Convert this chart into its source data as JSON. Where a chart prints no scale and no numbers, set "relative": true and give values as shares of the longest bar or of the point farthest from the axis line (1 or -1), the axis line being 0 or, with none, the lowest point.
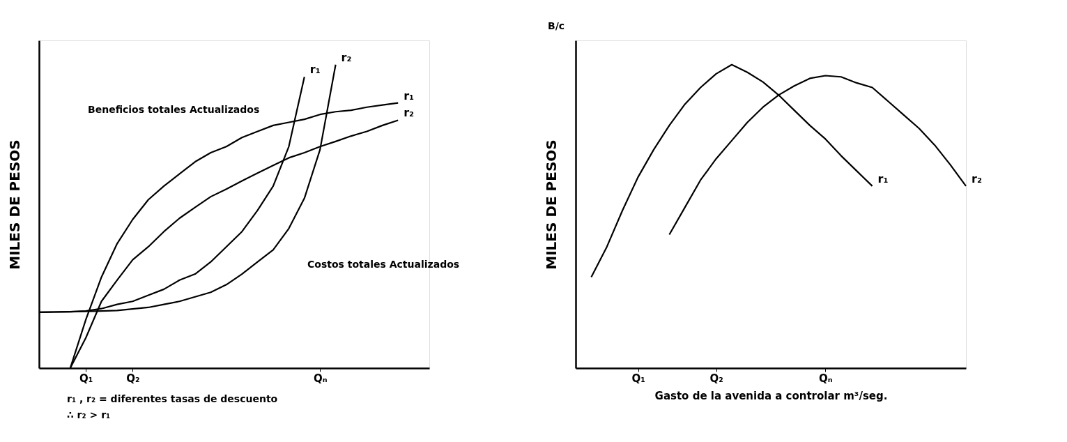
{
  "chart_data": [
    {
      "type": "line",
      "relative": true,
      "ylabel": "MILES DE PESOS",
      "marker": "none",
      "line_style": "solid",
      "categories": [
        null,
        null,
        null,
        "Q₁",
        null,
        null,
        "Q₂",
        null,
        null,
        null,
        null,
        null,
        null,
        null,
        null,
        null,
        null,
        null,
        "Qₙ",
        null,
        null,
        null,
        null,
        null,
        null,
        null
      ],
      "series": [
        {
          "name": "r₁",
          "color": "#000000",
          "values": [
            null,
            null,
            0,
            0.16,
            0.3,
            0.41,
            0.49,
            0.555,
            0.6,
            0.64,
            0.68,
            0.71,
            0.73,
            0.76,
            0.78,
            0.8,
            0.81,
            0.82,
            0.836,
            0.845,
            0.85,
            0.86,
            0.867,
            0.874,
            null,
            null
          ]
        },
        {
          "name": "r₂",
          "color": "#000000",
          "values": [
            null,
            null,
            0,
            0.1,
            0.22,
            0.29,
            0.357,
            0.4,
            0.45,
            0.494,
            0.53,
            0.565,
            0.59,
            0.617,
            0.643,
            0.668,
            0.693,
            0.71,
            0.73,
            0.747,
            0.765,
            0.78,
            0.8,
            0.817,
            null,
            null
          ]
        },
        {
          "name": "r₁",
          "color": "#000000",
          "values": [
            0.184,
            0.185,
            0.186,
            0.188,
            0.196,
            0.21,
            0.22,
            0.24,
            0.26,
            0.29,
            0.31,
            0.35,
            0.4,
            0.45,
            0.52,
            0.6,
            0.73,
            0.96,
            null,
            null,
            null,
            null,
            null,
            null,
            null,
            null
          ]
        },
        {
          "name": "r₂",
          "color": "#000000",
          "values": [
            0.184,
            0.185,
            0.186,
            0.187,
            0.188,
            0.19,
            0.195,
            0.2,
            0.21,
            0.22,
            0.235,
            0.25,
            0.275,
            0.31,
            0.35,
            0.39,
            0.46,
            0.56,
            0.72,
            1,
            null,
            null,
            null,
            null,
            null,
            null
          ]
        }
      ],
      "annotations": [
        "Beneficios totales Actualizados",
        "Costos totales Actualizados",
        "r₁ , r₂ = diferentes tasas de descuento",
        "∴ r₂ > r₁"
      ]
    },
    {
      "type": "line",
      "relative": true,
      "ylabel": "MILES DE PESOS",
      "xlabel": "Gasto de la avenida a controlar m³/seg.",
      "marker": "none",
      "line_style": "solid",
      "categories": [
        null,
        null,
        null,
        null,
        "Q₁",
        null,
        null,
        null,
        null,
        "Q₂",
        null,
        null,
        null,
        null,
        null,
        null,
        "Qₙ",
        null,
        null,
        null,
        null,
        null,
        null,
        null,
        null,
        null
      ],
      "series": [
        {
          "name": "r₁",
          "color": "#000000",
          "values": [
            null,
            0.3,
            0.4,
            0.52,
            0.63,
            0.72,
            0.8,
            0.87,
            0.925,
            0.97,
            1,
            0.975,
            0.943,
            0.9,
            0.85,
            0.8,
            0.755,
            0.7,
            0.65,
            0.6,
            null,
            null,
            null,
            null,
            null,
            null
          ]
        },
        {
          "name": "r₂",
          "color": "#000000",
          "values": [
            null,
            null,
            null,
            null,
            null,
            null,
            0.44,
            0.53,
            0.62,
            0.69,
            0.75,
            0.81,
            0.86,
            0.9,
            0.93,
            0.955,
            0.964,
            0.96,
            0.94,
            0.925,
            0.88,
            0.835,
            0.79,
            0.735,
            0.67,
            0.6
          ]
        }
      ],
      "annotations": [
        "B/c"
      ]
    }
  ]
}
